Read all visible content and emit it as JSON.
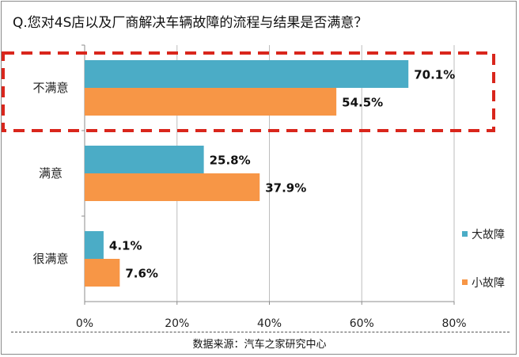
{
  "title": "Q.您对4S店以及厂商解决车辆故障的流程与结果是否满意？",
  "source": "数据来源：汽车之家研究中心",
  "chart_data": {
    "type": "bar",
    "orientation": "horizontal",
    "categories": [
      "不满意",
      "满意",
      "很满意"
    ],
    "series": [
      {
        "name": "大故障",
        "color": "#4bacc6",
        "values": [
          70.1,
          25.8,
          4.1
        ]
      },
      {
        "name": "小故障",
        "color": "#f79646",
        "values": [
          54.5,
          37.9,
          7.6
        ]
      }
    ],
    "value_labels": [
      [
        "70.1%",
        "25.8%",
        "4.1%"
      ],
      [
        "54.5%",
        "37.9%",
        "7.6%"
      ]
    ],
    "x_ticks": [
      "0%",
      "20%",
      "40%",
      "60%",
      "80%"
    ],
    "xlim": [
      0,
      80
    ],
    "grid": true,
    "legend_position": "right",
    "highlight": {
      "category": "不满意",
      "style": "dashed",
      "color": "#d9261c"
    }
  }
}
